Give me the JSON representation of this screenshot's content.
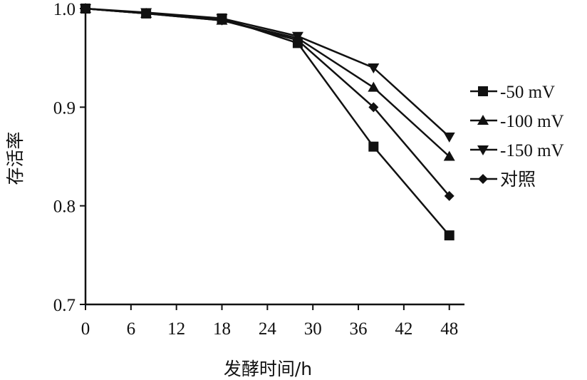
{
  "chart_data": {
    "type": "line",
    "title": "",
    "xlabel": "发酵时间/h",
    "ylabel": "存活率",
    "xlim": [
      0,
      50
    ],
    "ylim": [
      0.7,
      1.0
    ],
    "xticks": [
      0,
      6,
      12,
      18,
      24,
      30,
      36,
      42,
      48
    ],
    "yticks": [
      0.7,
      0.8,
      0.9,
      1.0
    ],
    "ytick_labels": [
      "0.7",
      "0.8",
      "0.9",
      "1.0"
    ],
    "grid": false,
    "legend_position": "right",
    "series": [
      {
        "name": "-50 mV",
        "marker": "square",
        "x": [
          0,
          8,
          18,
          28,
          38,
          48
        ],
        "y": [
          1.0,
          0.995,
          0.99,
          0.965,
          0.86,
          0.77
        ]
      },
      {
        "name": "-100 mV",
        "marker": "triangle-up",
        "x": [
          0,
          8,
          18,
          28,
          38,
          48
        ],
        "y": [
          1.0,
          0.995,
          0.988,
          0.97,
          0.92,
          0.85
        ]
      },
      {
        "name": "-150 mV",
        "marker": "triangle-down",
        "x": [
          0,
          8,
          18,
          28,
          38,
          48
        ],
        "y": [
          1.0,
          0.996,
          0.99,
          0.972,
          0.94,
          0.87
        ]
      },
      {
        "name": "对照",
        "marker": "diamond",
        "x": [
          0,
          8,
          18,
          28,
          38,
          48
        ],
        "y": [
          1.0,
          0.995,
          0.988,
          0.968,
          0.9,
          0.81
        ]
      }
    ],
    "colors": {
      "line": "#111111",
      "marker": "#111111"
    }
  }
}
